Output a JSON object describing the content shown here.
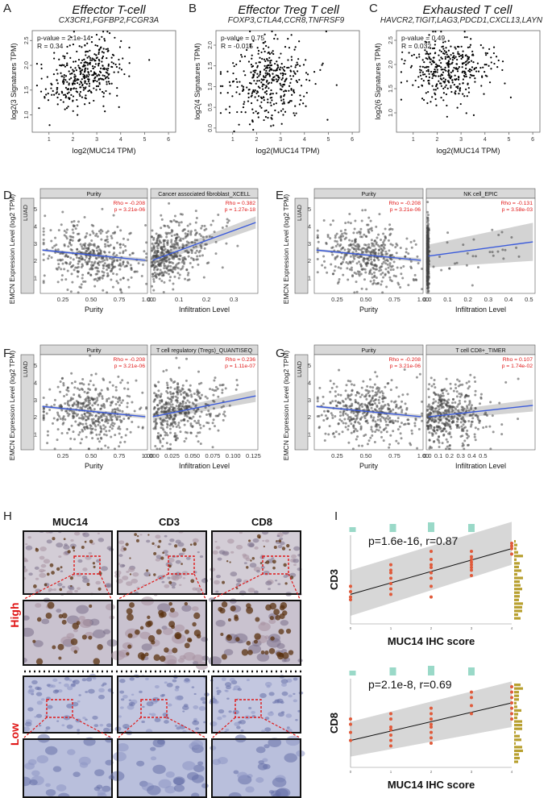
{
  "panels": {
    "A": {
      "label": "A",
      "title": "Effector T-cell",
      "genes": "CX3CR1,FGFBP2,FCGR3A",
      "stats": [
        "p-value = 2.1e-14",
        "R = 0.34"
      ],
      "xlabel": "log2(MUC14 TPM)",
      "ylabel": "log2(3 Signatures TPM)",
      "xticks": [
        "1",
        "2",
        "3",
        "4",
        "5",
        "6"
      ],
      "yticks": [
        "1.0",
        "1.5",
        "2.0",
        "2.5"
      ]
    },
    "B": {
      "label": "B",
      "title": "Effector Treg T cell",
      "genes": "FOXP3,CTLA4,CCR8,TNFRSF9",
      "stats": [
        "p-value = 0.75",
        "R = -0.015"
      ],
      "xlabel": "log2(MUC14 TPM)",
      "ylabel": "log2(4 Signatures TPM)",
      "xticks": [
        "1",
        "2",
        "3",
        "4",
        "5",
        "6"
      ],
      "yticks": [
        "0.0",
        "0.5",
        "1.0",
        "1.5",
        "2.0"
      ]
    },
    "C": {
      "label": "C",
      "title": "Exhausted T cell",
      "genes": "HAVCR2,TIGIT,LAG3,PDCD1,CXCL13,LAYN",
      "stats": [
        "p-value = 0.49",
        "R = 0.032"
      ],
      "xlabel": "log2(MUC14 TPM)",
      "ylabel": "log2(6 Signatures TPM)",
      "xticks": [
        "1",
        "2",
        "3",
        "4",
        "5",
        "6"
      ],
      "yticks": [
        "1.0",
        "1.5",
        "2.0",
        "2.5"
      ]
    },
    "timer": {
      "ylabel": "EMCN Expression Level (log2 TPM)",
      "strip": "LUAD",
      "D": {
        "label": "D",
        "right_title": "Cancer associated fibroblast_XCELL",
        "right_stats": [
          "Rho = 0.382",
          "p = 1.27e-18"
        ],
        "xticks_right": [
          "0.0",
          "0.1",
          "0.2",
          "0.3"
        ]
      },
      "E": {
        "label": "E",
        "right_title": "NK cell_EPIC",
        "right_stats": [
          "Rho = -0.131",
          "p = 3.58e-03"
        ],
        "xticks_right": [
          "0.0",
          "0.1",
          "0.2",
          "0.3",
          "0.4",
          "0.5"
        ]
      },
      "F": {
        "label": "F",
        "right_title": "T cell regulatory (Tregs)_QUANTISEQ",
        "right_stats": [
          "Rho = 0.236",
          "p = 1.11e-07"
        ],
        "xticks_right": [
          "0.000",
          "0.025",
          "0.050",
          "0.075",
          "0.100",
          "0.125"
        ]
      },
      "G": {
        "label": "G",
        "right_title": "T cell CD8+_TIMER",
        "right_stats": [
          "Rho = 0.107",
          "p = 1.74e-02"
        ],
        "xticks_right": [
          "0.0",
          "0.1",
          "0.2",
          "0.3",
          "0.4",
          "0.5"
        ]
      },
      "left_title": "Purity",
      "left_stats": [
        "Rho = -0.208",
        "p = 3.21e-06"
      ],
      "xticks_left": [
        "0.25",
        "0.50",
        "0.75",
        "1.00"
      ],
      "yticks": [
        "1",
        "2",
        "3",
        "4",
        "5"
      ],
      "xlabel_left": "Purity",
      "xlabel_right": "Infiltration Level"
    },
    "H": {
      "label": "H",
      "cols": [
        "MUC14",
        "CD3",
        "CD8"
      ],
      "rows": [
        "High",
        "Low"
      ]
    },
    "I": {
      "label": "I",
      "top": {
        "stat": "p=1.6e-16, r=0.87",
        "xlabel": "MUC14 IHC score",
        "ylabel": "CD3"
      },
      "bottom": {
        "stat": "p=2.1e-8, r=0.69",
        "xlabel": "MUC14 IHC score",
        "ylabel": "CD8"
      }
    }
  },
  "colors": {
    "accent_red": "#e01818",
    "fit_blue": "#3b5bdb",
    "ci_gray": "#cfcfcf",
    "teal": "#9ad9c8",
    "olive": "#b8a030"
  }
}
